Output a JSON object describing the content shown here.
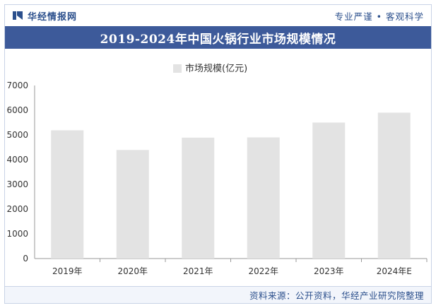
{
  "header": {
    "brand": "华经情报网",
    "slogan": "专业严谨 • 客观科学"
  },
  "footer": {
    "source": "资料来源：公开资料，华经产业研究院整理"
  },
  "colors": {
    "title_bg": "#3d5a9a",
    "brand_text": "#2b4f8c",
    "bar_fill": "#e3e3e3",
    "axis": "#9a9a9a"
  },
  "chart_data": {
    "type": "bar",
    "title": "2019-2024年中国火锅行业市场规模情况",
    "categories": [
      "2019年",
      "2020年",
      "2021年",
      "2022年",
      "2023年",
      "2024年E"
    ],
    "series": [
      {
        "name": "市场规模(亿元)",
        "values": [
          5188,
          4392,
          4891,
          4900,
          5500,
          5900
        ]
      }
    ],
    "ylim": [
      0,
      7000
    ],
    "yticks": [
      0,
      1000,
      2000,
      3000,
      4000,
      5000,
      6000,
      7000
    ],
    "xlabel": "",
    "ylabel": "",
    "grid": false,
    "legend": "top-center"
  }
}
